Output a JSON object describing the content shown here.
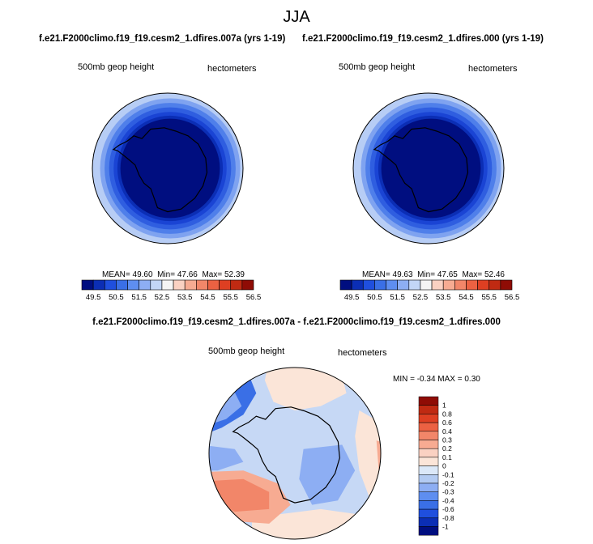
{
  "figure": {
    "title": "JJA",
    "panels": [
      {
        "case_title": "f.e21.F2000climo.f19_f19.cesm2_1.dfires.007a (yrs 1-19)",
        "variable_label": "500mb geop height",
        "units_label": "hectometers",
        "stats": {
          "mean_label": "MEAN=",
          "mean": "49.60",
          "min_label": "Min=",
          "min": "47.66",
          "max_label": "Max=",
          "max": "52.39"
        }
      },
      {
        "case_title": "f.e21.F2000climo.f19_f19.cesm2_1.dfires.000 (yrs 1-19)",
        "variable_label": "500mb geop height",
        "units_label": "hectometers",
        "stats": {
          "mean_label": "MEAN=",
          "mean": "49.63",
          "min_label": "Min=",
          "min": "47.65",
          "max_label": "Max=",
          "max": "52.46"
        }
      }
    ],
    "difference_panel": {
      "title": "f.e21.F2000climo.f19_f19.cesm2_1.dfires.007a - f.e21.F2000climo.f19_f19.cesm2_1.dfires.000",
      "variable_label": "500mb geop height",
      "units_label": "hectometers",
      "stats_text": "MIN =  -0.34 MAX =   0.30"
    }
  },
  "chart_data": [
    {
      "type": "heatmap",
      "projection": "south-polar-stereographic",
      "title": "f.e21.F2000climo.f19_f19.cesm2_1.dfires.007a (yrs 1-19)",
      "variable": "500mb geop height",
      "units": "hectometers",
      "mean": 49.6,
      "min": 47.66,
      "max": 52.39,
      "colorbar": {
        "orientation": "horizontal",
        "tick_labels": [
          "49.5",
          "50.5",
          "51.5",
          "52.5",
          "53.5",
          "54.5",
          "55.5",
          "56.5"
        ],
        "boundaries": [
          49.5,
          50,
          50.5,
          51,
          51.5,
          52,
          52.5,
          53,
          53.5,
          54,
          54.5,
          55,
          55.5,
          56,
          56.5
        ],
        "colors": [
          "#000e80",
          "#0b2eb5",
          "#1f4fde",
          "#3a6fe6",
          "#5e8ef0",
          "#8daef3",
          "#c2d6f7",
          "#f5f5f5",
          "#fad1c2",
          "#f7ab92",
          "#f28669",
          "#ec6142",
          "#de3f22",
          "#c02a12",
          "#8f0c05"
        ]
      },
      "field_rings": [
        {
          "level": "<49.5",
          "color": "#000e80"
        },
        {
          "level": "49.5-50",
          "color": "#0b2eb5"
        },
        {
          "level": "50-50.5",
          "color": "#1a44d4"
        },
        {
          "level": "50.5-51",
          "color": "#2f5ee0"
        },
        {
          "level": "51-51.5",
          "color": "#4f7fea"
        },
        {
          "level": "51.5-52",
          "color": "#7fa3f0"
        },
        {
          "level": "52-52.5",
          "color": "#b7cdf5"
        }
      ]
    },
    {
      "type": "heatmap",
      "projection": "south-polar-stereographic",
      "title": "f.e21.F2000climo.f19_f19.cesm2_1.dfires.000 (yrs 1-19)",
      "variable": "500mb geop height",
      "units": "hectometers",
      "mean": 49.63,
      "min": 47.65,
      "max": 52.46,
      "colorbar": {
        "orientation": "horizontal",
        "tick_labels": [
          "49.5",
          "50.5",
          "51.5",
          "52.5",
          "53.5",
          "54.5",
          "55.5",
          "56.5"
        ],
        "boundaries": [
          49.5,
          50,
          50.5,
          51,
          51.5,
          52,
          52.5,
          53,
          53.5,
          54,
          54.5,
          55,
          55.5,
          56,
          56.5
        ],
        "colors": [
          "#000e80",
          "#0b2eb5",
          "#1f4fde",
          "#3a6fe6",
          "#5e8ef0",
          "#8daef3",
          "#c2d6f7",
          "#f5f5f5",
          "#fad1c2",
          "#f7ab92",
          "#f28669",
          "#ec6142",
          "#de3f22",
          "#c02a12",
          "#8f0c05"
        ]
      },
      "field_rings": [
        {
          "level": "<49.5",
          "color": "#000e80"
        },
        {
          "level": "49.5-50",
          "color": "#0b2eb5"
        },
        {
          "level": "50-50.5",
          "color": "#1a44d4"
        },
        {
          "level": "50.5-51",
          "color": "#2f5ee0"
        },
        {
          "level": "51-51.5",
          "color": "#4f7fea"
        },
        {
          "level": "51.5-52",
          "color": "#7fa3f0"
        },
        {
          "level": "52-52.5",
          "color": "#b7cdf5"
        }
      ]
    },
    {
      "type": "heatmap",
      "projection": "south-polar-stereographic",
      "title": "f.e21.F2000climo.f19_f19.cesm2_1.dfires.007a - f.e21.F2000climo.f19_f19.cesm2_1.dfires.000",
      "variable": "500mb geop height",
      "units": "hectometers",
      "min": -0.34,
      "max": 0.3,
      "background_color": "#c6d8f5",
      "colorbar": {
        "orientation": "vertical",
        "tick_labels": [
          "1",
          "0.8",
          "0.6",
          "0.4",
          "0.3",
          "0.2",
          "0.1",
          "0",
          "-0.1",
          "-0.2",
          "-0.3",
          "-0.4",
          "-0.6",
          "-0.8",
          "-1"
        ],
        "colors": [
          "#8f0c05",
          "#c02a12",
          "#de3f22",
          "#ec6142",
          "#f28669",
          "#f7ab92",
          "#fad1c2",
          "#fbe5d8",
          "#dbe8f8",
          "#b3cbf2",
          "#8daef3",
          "#5e8ef0",
          "#3a6fe6",
          "#1f4fde",
          "#0b2eb5",
          "#000e80"
        ]
      },
      "anomaly_regions": [
        {
          "region": "upper-left",
          "color": "#3a6fe6"
        },
        {
          "region": "upper-left-inner",
          "color": "#8daef3"
        },
        {
          "region": "left-middle",
          "color": "#8daef3"
        },
        {
          "region": "lower-left",
          "color": "#f7ab92"
        },
        {
          "region": "lower-left-core",
          "color": "#f28669"
        },
        {
          "region": "top-center",
          "color": "#fbe5d8"
        },
        {
          "region": "right",
          "color": "#fbe5d8"
        },
        {
          "region": "bottom",
          "color": "#fbe5d8"
        },
        {
          "region": "east-antarctica",
          "color": "#8daef3"
        },
        {
          "region": "right-edge",
          "color": "#f7ab92"
        }
      ]
    }
  ]
}
